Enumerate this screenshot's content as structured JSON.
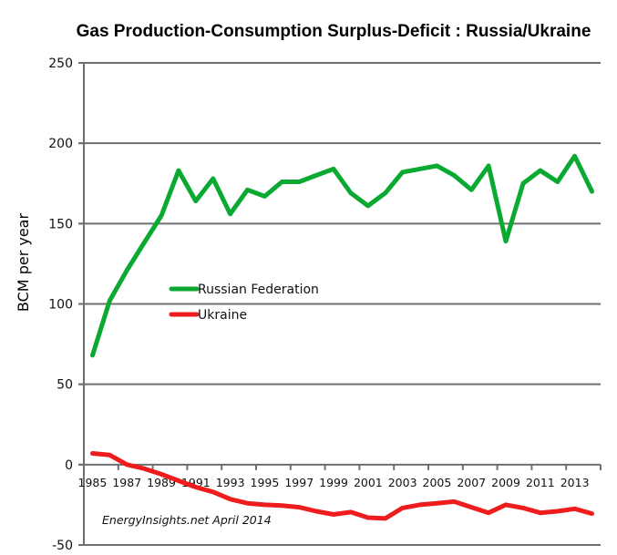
{
  "chart_data": {
    "type": "line",
    "title": "Gas Production-Consumption  Surplus-Deficit : Russia/Ukraine",
    "xlabel": "",
    "ylabel": "BCM per year",
    "ylim": [
      -50,
      250
    ],
    "yticks": [
      -50,
      0,
      50,
      100,
      150,
      200,
      250
    ],
    "ytick_labels": [
      "-50",
      "0",
      "50",
      "100",
      "150",
      "200",
      "250"
    ],
    "grid": true,
    "x": [
      1985,
      1986,
      1987,
      1988,
      1989,
      1990,
      1991,
      1992,
      1993,
      1994,
      1995,
      1996,
      1997,
      1998,
      1999,
      2000,
      2001,
      2002,
      2003,
      2004,
      2005,
      2006,
      2007,
      2008,
      2009,
      2010,
      2011,
      2012,
      2013,
      2014
    ],
    "xtick_labels": [
      "1985",
      "1987",
      "1989",
      "1991",
      "1993",
      "1995",
      "1997",
      "1999",
      "2001",
      "2003",
      "2005",
      "2007",
      "2009",
      "2011",
      "2013"
    ],
    "series": [
      {
        "name": "Russian Federation",
        "color": "#0aa932",
        "values": [
          68,
          102,
          121,
          138,
          155,
          183,
          164,
          178,
          156,
          171,
          167,
          176,
          176,
          180,
          184,
          169,
          161,
          169,
          182,
          184,
          186,
          180,
          171,
          186,
          139,
          175,
          183,
          176,
          192,
          170
        ]
      },
      {
        "name": "Ukraine",
        "color": "#ee1c1c",
        "values": [
          7,
          6,
          0,
          -2.5,
          -6,
          -10,
          -14,
          -17,
          -21.5,
          -24,
          -25,
          -25.5,
          -26.5,
          -29,
          -31,
          -29.5,
          -33,
          -33.5,
          -27,
          -25,
          -24,
          -23,
          -26.5,
          -30,
          -25,
          -27,
          -30,
          -29,
          -27.5,
          -30.5
        ]
      }
    ],
    "legend": {
      "placement": "center-left inside plot",
      "entries": [
        "Russian Federation",
        "Ukraine"
      ]
    },
    "annotations": [
      "EnergyInsights.net April 2014"
    ]
  }
}
